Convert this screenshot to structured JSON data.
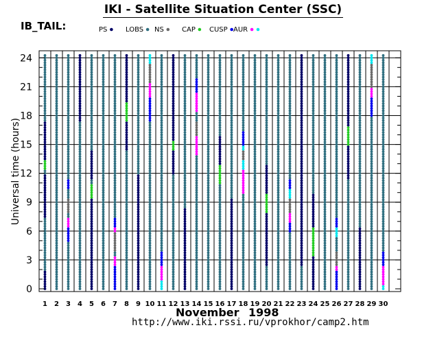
{
  "header": {
    "title": "IKI - Satellite Situation Center (SSC)",
    "panel_label": "IB_TAIL:"
  },
  "footer": {
    "month": "November",
    "year": "1998",
    "url": "http://www.iki.rssi.ru/vprokhor/camp2.htm"
  },
  "colors": {
    "PS": "#000066",
    "LOBS": "#2f6f80",
    "NS": "#696969",
    "CAP": "#22cc22",
    "CUSP": "#0000ee",
    "AUR": "#ff00ff",
    "TRANSIT": "#00e5ee",
    "grid": "#000000"
  },
  "chart_data": {
    "type": "scatter",
    "title": "IKI - Satellite Situation Center (SSC)",
    "subtitle": "IB_TAIL:",
    "xlabel": "November 1998",
    "ylabel": "Universal time  (hours)",
    "xlim": [
      0.5,
      31.5
    ],
    "ylim": [
      0,
      24.5
    ],
    "x_ticks": [
      1,
      2,
      3,
      4,
      5,
      6,
      7,
      8,
      9,
      10,
      11,
      12,
      13,
      14,
      15,
      16,
      17,
      18,
      19,
      20,
      21,
      22,
      23,
      24,
      25,
      26,
      27,
      28,
      29,
      30
    ],
    "y_ticks": [
      0,
      3,
      6,
      9,
      12,
      15,
      18,
      21,
      24
    ],
    "legend": [
      "PS",
      "LOBS",
      "NS",
      "CAP",
      "CUSP",
      "AUR"
    ],
    "sample_interval_hours": 0.25,
    "days": [
      {
        "day": 1,
        "segments": [
          [
            "PS",
            0,
            2
          ],
          [
            "LOBS",
            2,
            7.5
          ],
          [
            "PS",
            7.5,
            12
          ],
          [
            "LOBS",
            12,
            12.5
          ],
          [
            "CAP",
            12.5,
            13.5
          ],
          [
            "PS",
            13.5,
            17.5
          ],
          [
            "LOBS",
            17.5,
            24.5
          ]
        ]
      },
      {
        "day": 2,
        "segments": [
          [
            "LOBS",
            0,
            24.5
          ]
        ]
      },
      {
        "day": 3,
        "segments": [
          [
            "LOBS",
            0,
            5
          ],
          [
            "CUSP",
            5,
            6.5
          ],
          [
            "AUR",
            6.5,
            7.5
          ],
          [
            "LOBS",
            7.5,
            8
          ],
          [
            "NS",
            8,
            9.5
          ],
          [
            "LOBS",
            9.5,
            10.5
          ],
          [
            "CUSP",
            10.5,
            11.5
          ],
          [
            "LOBS",
            11.5,
            24.5
          ]
        ]
      },
      {
        "day": 4,
        "segments": [
          [
            "LOBS",
            0,
            17.5
          ],
          [
            "PS",
            17.5,
            24.5
          ]
        ]
      },
      {
        "day": 5,
        "segments": [
          [
            "PS",
            0,
            9.5
          ],
          [
            "CAP",
            9.5,
            11
          ],
          [
            "LOBS",
            11,
            11.5
          ],
          [
            "PS",
            11.5,
            14.5
          ],
          [
            "LOBS",
            14.5,
            24.5
          ]
        ]
      },
      {
        "day": 6,
        "segments": [
          [
            "LOBS",
            0,
            24.5
          ]
        ]
      },
      {
        "day": 7,
        "segments": [
          [
            "CUSP",
            0,
            2.5
          ],
          [
            "AUR",
            2.5,
            3.5
          ],
          [
            "LOBS",
            3.5,
            4
          ],
          [
            "NS",
            4,
            6
          ],
          [
            "AUR",
            6,
            6.5
          ],
          [
            "CUSP",
            6.5,
            7.5
          ],
          [
            "LOBS",
            7.5,
            24.5
          ]
        ]
      },
      {
        "day": 8,
        "segments": [
          [
            "LOBS",
            0,
            14.5
          ],
          [
            "PS",
            14.5,
            17.5
          ],
          [
            "CAP",
            17.5,
            19.5
          ],
          [
            "PS",
            19.5,
            24.5
          ]
        ]
      },
      {
        "day": 9,
        "segments": [
          [
            "PS",
            0,
            12
          ],
          [
            "LOBS",
            12,
            24.5
          ]
        ]
      },
      {
        "day": 10,
        "segments": [
          [
            "LOBS",
            0,
            17.5
          ],
          [
            "CUSP",
            17.5,
            20
          ],
          [
            "AUR",
            20,
            21.5
          ],
          [
            "NS",
            21.5,
            23.5
          ],
          [
            "TRANSIT",
            23.5,
            24.5
          ]
        ]
      },
      {
        "day": 11,
        "segments": [
          [
            "TRANSIT",
            0,
            1
          ],
          [
            "AUR",
            1,
            2.5
          ],
          [
            "CUSP",
            2.5,
            4
          ],
          [
            "LOBS",
            4,
            24.5
          ]
        ]
      },
      {
        "day": 12,
        "segments": [
          [
            "LOBS",
            0,
            12
          ],
          [
            "PS",
            12,
            14.5
          ],
          [
            "CAP",
            14.5,
            15.5
          ],
          [
            "PS",
            15.5,
            24.5
          ]
        ]
      },
      {
        "day": 13,
        "segments": [
          [
            "PS",
            0,
            8.5
          ],
          [
            "LOBS",
            8.5,
            24.5
          ]
        ]
      },
      {
        "day": 14,
        "segments": [
          [
            "LOBS",
            0,
            14
          ],
          [
            "AUR",
            14,
            16
          ],
          [
            "NS",
            16,
            17.5
          ],
          [
            "LOBS",
            17.5,
            18.5
          ],
          [
            "AUR",
            18.5,
            20.5
          ],
          [
            "CUSP",
            20.5,
            22
          ],
          [
            "LOBS",
            22,
            24.5
          ]
        ]
      },
      {
        "day": 15,
        "segments": [
          [
            "LOBS",
            0,
            24.5
          ]
        ]
      },
      {
        "day": 16,
        "segments": [
          [
            "LOBS",
            0,
            11
          ],
          [
            "CAP",
            11,
            13
          ],
          [
            "PS",
            13,
            16
          ],
          [
            "LOBS",
            16,
            24.5
          ]
        ]
      },
      {
        "day": 17,
        "segments": [
          [
            "PS",
            0,
            9.5
          ],
          [
            "LOBS",
            9.5,
            24.5
          ]
        ]
      },
      {
        "day": 18,
        "segments": [
          [
            "LOBS",
            0,
            10
          ],
          [
            "AUR",
            10,
            12.5
          ],
          [
            "TRANSIT",
            12.5,
            13.5
          ],
          [
            "NS",
            13.5,
            14.5
          ],
          [
            "TRANSIT",
            14.5,
            15
          ],
          [
            "CUSP",
            15,
            16.5
          ],
          [
            "LOBS",
            16.5,
            24.5
          ]
        ]
      },
      {
        "day": 19,
        "segments": [
          [
            "LOBS",
            0,
            24.5
          ]
        ]
      },
      {
        "day": 20,
        "segments": [
          [
            "LOBS",
            0,
            2.5
          ],
          [
            "PS",
            2.5,
            8
          ],
          [
            "CAP",
            8,
            10
          ],
          [
            "PS",
            10,
            13
          ],
          [
            "LOBS",
            13,
            24.5
          ]
        ]
      },
      {
        "day": 21,
        "segments": [
          [
            "LOBS",
            0,
            24.5
          ]
        ]
      },
      {
        "day": 22,
        "segments": [
          [
            "LOBS",
            0,
            6
          ],
          [
            "CUSP",
            6,
            7
          ],
          [
            "AUR",
            7,
            8
          ],
          [
            "NS",
            8,
            9.5
          ],
          [
            "TRANSIT",
            9.5,
            10.5
          ],
          [
            "CUSP",
            10.5,
            11.5
          ],
          [
            "LOBS",
            11.5,
            24.5
          ]
        ]
      },
      {
        "day": 23,
        "segments": [
          [
            "LOBS",
            0,
            2.5
          ],
          [
            "PS",
            2.5,
            24.5
          ]
        ]
      },
      {
        "day": 24,
        "segments": [
          [
            "PS",
            0,
            3.5
          ],
          [
            "CAP",
            3.5,
            6.5
          ],
          [
            "PS",
            6.5,
            10
          ],
          [
            "LOBS",
            10,
            24.5
          ]
        ]
      },
      {
        "day": 25,
        "segments": [
          [
            "LOBS",
            0,
            24.5
          ]
        ]
      },
      {
        "day": 26,
        "segments": [
          [
            "CUSP",
            0,
            2
          ],
          [
            "AUR",
            2,
            2.5
          ],
          [
            "NS",
            2.5,
            4
          ],
          [
            "LOBS",
            4,
            5.5
          ],
          [
            "TRANSIT",
            5.5,
            6.5
          ],
          [
            "CUSP",
            6.5,
            7.5
          ],
          [
            "LOBS",
            7.5,
            24.5
          ]
        ]
      },
      {
        "day": 27,
        "segments": [
          [
            "LOBS",
            0,
            11.5
          ],
          [
            "PS",
            11.5,
            15
          ],
          [
            "CAP",
            15,
            17
          ],
          [
            "PS",
            17,
            24.5
          ]
        ]
      },
      {
        "day": 28,
        "segments": [
          [
            "PS",
            0,
            6.5
          ],
          [
            "LOBS",
            6.5,
            24.5
          ]
        ]
      },
      {
        "day": 29,
        "segments": [
          [
            "LOBS",
            0,
            18
          ],
          [
            "CUSP",
            18,
            20
          ],
          [
            "AUR",
            20,
            21
          ],
          [
            "NS",
            21,
            23.5
          ],
          [
            "TRANSIT",
            23.5,
            24.5
          ]
        ]
      },
      {
        "day": 30,
        "segments": [
          [
            "TRANSIT",
            0,
            0.5
          ],
          [
            "AUR",
            0.5,
            2.5
          ],
          [
            "CUSP",
            2.5,
            4
          ],
          [
            "LOBS",
            4,
            24.5
          ]
        ]
      }
    ]
  }
}
